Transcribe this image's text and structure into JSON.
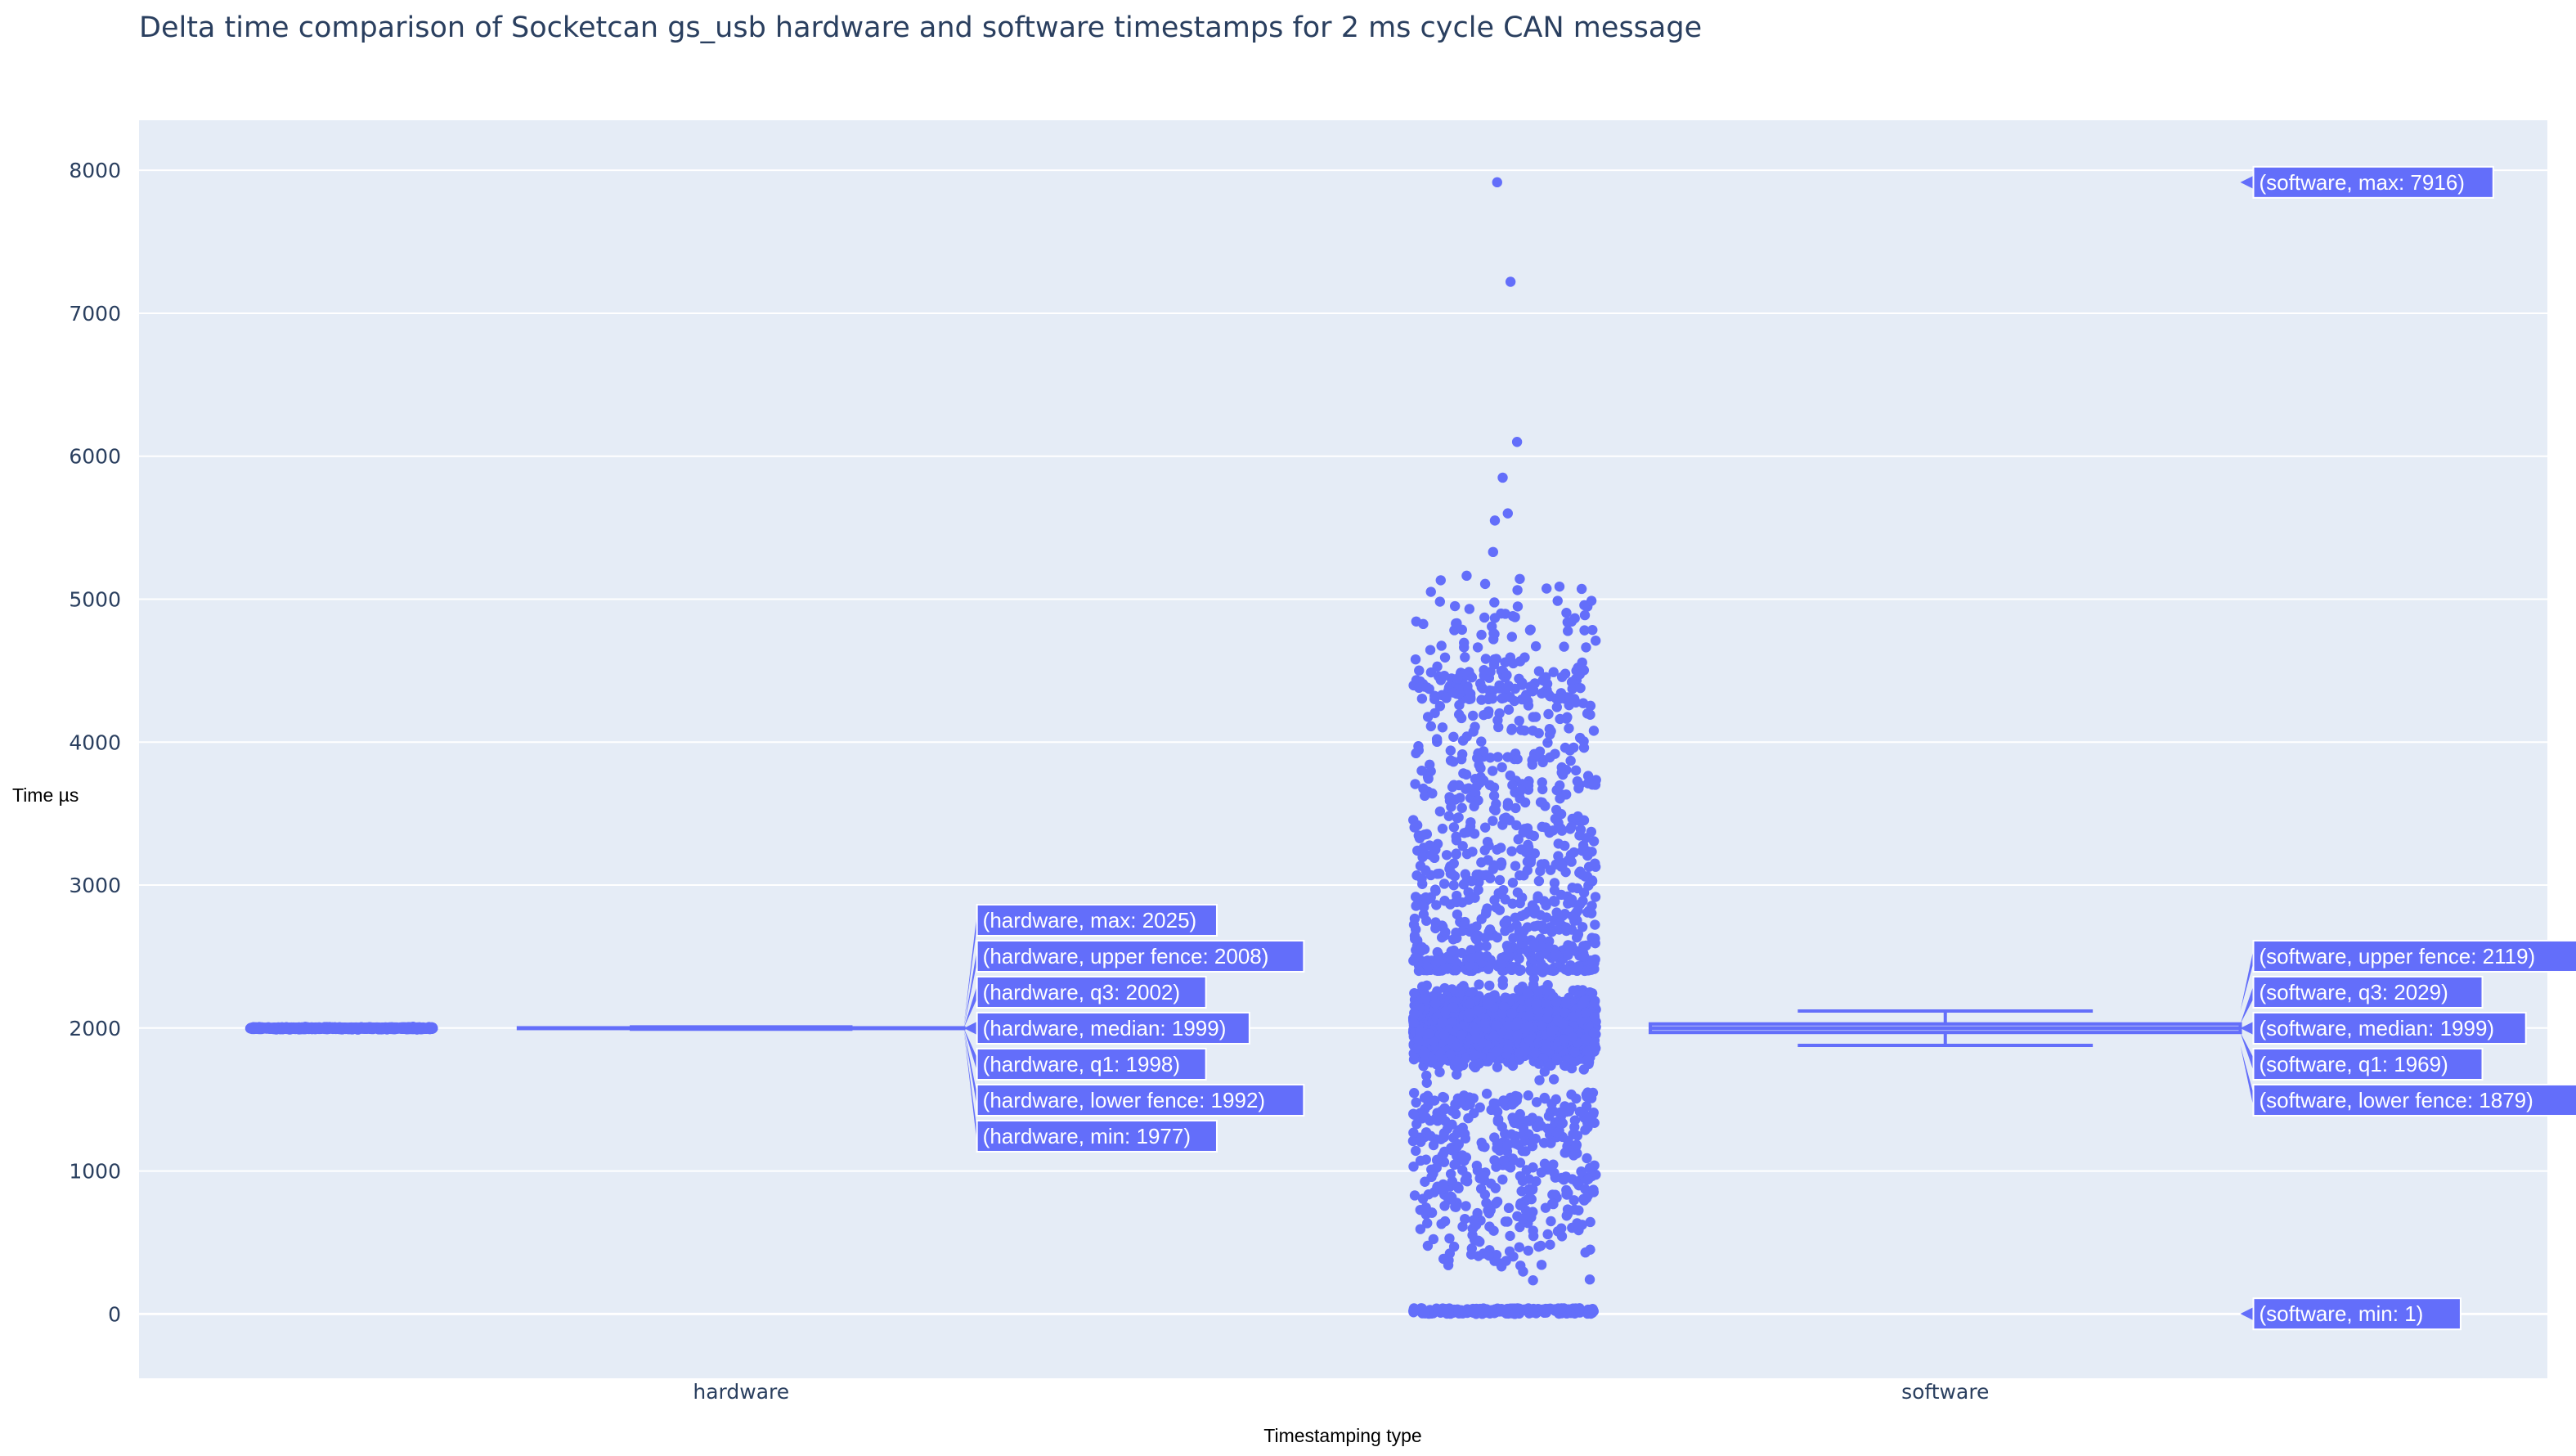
{
  "chart_data": {
    "type": "box",
    "title": "Delta time comparison of Socketcan gs_usb hardware and software timestamps for 2 ms cycle CAN message",
    "xlabel": "Timestamping type",
    "ylabel": "Time µs",
    "categories": [
      "hardware",
      "software"
    ],
    "ylim": [
      -450,
      8350
    ],
    "yticks": [
      0,
      1000,
      2000,
      3000,
      4000,
      5000,
      6000,
      7000,
      8000
    ],
    "grid": true,
    "boxpoints": "all",
    "colors": {
      "marker": "#636efa",
      "plot_bg": "#e5ecf6",
      "grid": "#ffffff",
      "text": "#2a3f5f"
    },
    "series": [
      {
        "category": "hardware",
        "stats": {
          "min": 1977,
          "lower_fence": 1992,
          "q1": 1998,
          "median": 1999,
          "q3": 2002,
          "upper_fence": 2008,
          "max": 2025
        },
        "hover_labels": [
          "(hardware, max: 2025)",
          "(hardware, upper fence: 2008)",
          "(hardware, q3: 2002)",
          "(hardware, median: 1999)",
          "(hardware, q1: 1998)",
          "(hardware, lower fence: 1992)",
          "(hardware, min: 1977)"
        ]
      },
      {
        "category": "software",
        "stats": {
          "min": 1,
          "lower_fence": 1879,
          "q1": 1969,
          "median": 1999,
          "q3": 2029,
          "upper_fence": 2119,
          "max": 7916
        },
        "hover_labels": [
          "(software, max: 7916)",
          "(software, upper fence: 2119)",
          "(software, q3: 2029)",
          "(software, median: 1999)",
          "(software, q1: 1969)",
          "(software, lower fence: 1879)",
          "(software, min: 1)"
        ],
        "notable_points": [
          7916,
          7220,
          6100,
          5850,
          5600,
          5550,
          5330,
          0
        ]
      }
    ]
  }
}
